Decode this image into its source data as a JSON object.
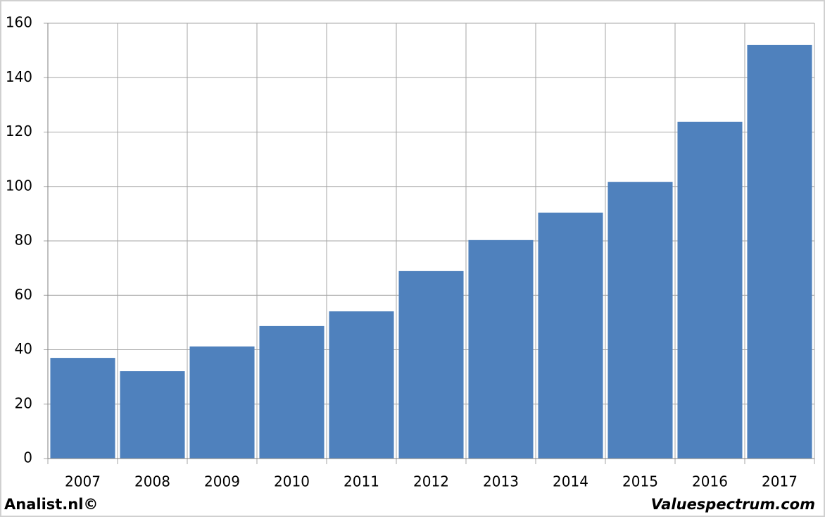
{
  "chart_data": {
    "type": "bar",
    "categories": [
      "2007",
      "2008",
      "2009",
      "2010",
      "2011",
      "2012",
      "2013",
      "2014",
      "2015",
      "2016",
      "2017"
    ],
    "values": [
      37.0,
      32.1,
      41.2,
      48.7,
      54.1,
      68.9,
      80.3,
      90.4,
      101.7,
      123.8,
      152.0
    ],
    "color": "#4f81bd",
    "ylim": [
      0,
      160
    ],
    "yticks": [
      0,
      20,
      40,
      60,
      80,
      100,
      120,
      140,
      160
    ],
    "grid": true,
    "footer_left": "Analist.nl©",
    "footer_right": "Valuespectrum.com"
  }
}
